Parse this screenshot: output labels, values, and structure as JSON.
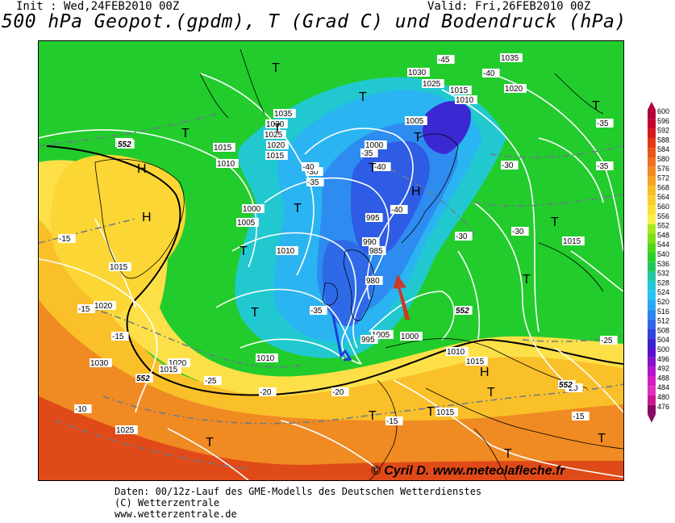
{
  "header": {
    "init": "Init : Wed,24FEB2010 00Z",
    "valid": "Valid: Fri,26FEB2010 00Z",
    "title": "500 hPa Geopot.(gpdm), T (Grad C) und Bodendruck (hPa)"
  },
  "footer": {
    "line1": "Daten: 00/12z-Lauf des GME-Modells des Deutschen Wetterdienstes",
    "line2": "(C) Wetterzentrale",
    "line3": "www.wetterzentrale.de"
  },
  "copyright": "© Cyril D. www.meteolafleche.fr",
  "legend": {
    "levels": [
      "600",
      "596",
      "592",
      "588",
      "584",
      "580",
      "576",
      "572",
      "568",
      "564",
      "560",
      "556",
      "552",
      "548",
      "544",
      "540",
      "536",
      "532",
      "528",
      "524",
      "520",
      "516",
      "512",
      "508",
      "504",
      "500",
      "496",
      "492",
      "488",
      "484",
      "480",
      "476"
    ],
    "colors": [
      "#b0003a",
      "#c8002e",
      "#d81a1a",
      "#e23a12",
      "#e8561a",
      "#ee7020",
      "#f28a22",
      "#f6a424",
      "#f8bc28",
      "#fad02e",
      "#fce036",
      "#fdee48",
      "#a6e820",
      "#7ede16",
      "#4fd618",
      "#2cce2a",
      "#22c85a",
      "#20c6a0",
      "#22c8d8",
      "#28c2f4",
      "#2aa6f6",
      "#2e86f0",
      "#3066e8",
      "#3044dc",
      "#3a22d0",
      "#5a10cc",
      "#8a10cc",
      "#b614c8",
      "#d61cc2",
      "#e030c0",
      "#c8188e",
      "#8a0860"
    ]
  },
  "map_labels": {
    "pressure": [
      {
        "t": "1035"
      },
      {
        "t": "1030"
      },
      {
        "t": "1025"
      },
      {
        "t": "1020"
      },
      {
        "t": "1015"
      },
      {
        "t": "1010"
      },
      {
        "t": "1005"
      },
      {
        "t": "1000"
      },
      {
        "t": "995"
      },
      {
        "t": "990"
      },
      {
        "t": "985"
      },
      {
        "t": "980"
      },
      {
        "t": "1035"
      },
      {
        "t": "1030"
      },
      {
        "t": "1025"
      },
      {
        "t": "1020"
      },
      {
        "t": "1015"
      },
      {
        "t": "1010"
      },
      {
        "t": "1005"
      },
      {
        "t": "1000"
      },
      {
        "t": "1015"
      },
      {
        "t": "1010"
      },
      {
        "t": "1015"
      },
      {
        "t": "1020"
      },
      {
        "t": "1030"
      },
      {
        "t": "1025"
      },
      {
        "t": "1020"
      },
      {
        "t": "1015"
      },
      {
        "t": "1010"
      },
      {
        "t": "1005"
      },
      {
        "t": "1000"
      },
      {
        "t": "995"
      },
      {
        "t": "1010"
      },
      {
        "t": "1015"
      },
      {
        "t": "1015"
      },
      {
        "t": "1015"
      }
    ],
    "temperature": [
      {
        "t": "-45"
      },
      {
        "t": "-40"
      },
      {
        "t": "-40"
      },
      {
        "t": "-40"
      },
      {
        "t": "-35"
      },
      {
        "t": "-35"
      },
      {
        "t": "-35"
      },
      {
        "t": "-30"
      },
      {
        "t": "-30"
      },
      {
        "t": "-30"
      },
      {
        "t": "-30"
      },
      {
        "t": "-25"
      },
      {
        "t": "-25"
      },
      {
        "t": "-25"
      },
      {
        "t": "-20"
      },
      {
        "t": "-20"
      },
      {
        "t": "-20"
      },
      {
        "t": "-15"
      },
      {
        "t": "-15"
      },
      {
        "t": "-15"
      },
      {
        "t": "-15"
      },
      {
        "t": "-10"
      },
      {
        "t": "-15"
      },
      {
        "t": "-40"
      },
      {
        "t": "-35"
      },
      {
        "t": "-35"
      }
    ],
    "highs": [
      {
        "t": "H"
      },
      {
        "t": "H"
      },
      {
        "t": "H"
      },
      {
        "t": "H"
      }
    ],
    "lows": [
      {
        "t": "T"
      },
      {
        "t": "T"
      },
      {
        "t": "T"
      },
      {
        "t": "T"
      },
      {
        "t": "T"
      },
      {
        "t": "T"
      },
      {
        "t": "T"
      },
      {
        "t": "T"
      },
      {
        "t": "T"
      },
      {
        "t": "T"
      },
      {
        "t": "T"
      },
      {
        "t": "T"
      },
      {
        "t": "T"
      },
      {
        "t": "T"
      },
      {
        "t": "T"
      },
      {
        "t": "T"
      },
      {
        "t": "T"
      },
      {
        "t": "T"
      }
    ],
    "geopotential": [
      {
        "t": "552"
      },
      {
        "t": "552"
      },
      {
        "t": "552"
      },
      {
        "t": "552"
      }
    ]
  }
}
